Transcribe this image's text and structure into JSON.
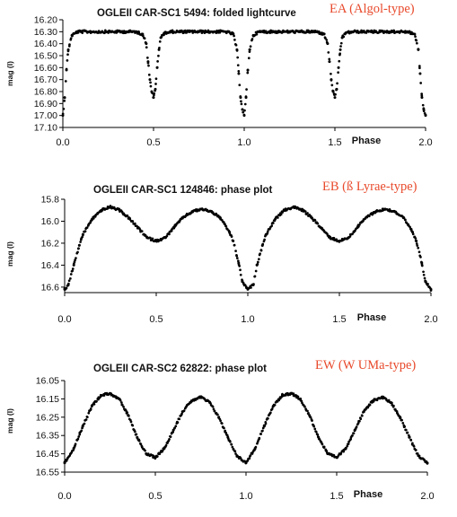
{
  "chart_data": [
    {
      "type": "scatter",
      "title": "OGLEII CAR-SC1 5494: folded lightcurve",
      "annotation": "EA (Algol-type)",
      "xlabel": "Phase",
      "ylabel": "mag (I)",
      "xlim": [
        0.0,
        2.0
      ],
      "ylim": [
        16.2,
        17.1
      ],
      "y_inverted": true,
      "grid": false,
      "x_ticks": [
        0.0,
        0.5,
        1.0,
        1.5,
        2.0
      ],
      "x_tick_labels": [
        "0.0",
        "0.5",
        "1.0",
        "1.5",
        "2.0"
      ],
      "y_ticks": [
        16.2,
        16.3,
        16.4,
        16.5,
        16.6,
        16.7,
        16.8,
        16.9,
        17.0,
        17.1
      ],
      "y_tick_labels": [
        "16.20",
        "16.30",
        "16.40",
        "16.50",
        "16.60",
        "16.70",
        "16.80",
        "16.90",
        "17.00",
        "17.10"
      ],
      "series": [
        {
          "x": [
            0.0,
            0.01,
            0.02,
            0.03,
            0.05,
            0.08,
            0.1,
            0.15,
            0.2,
            0.25,
            0.3,
            0.35,
            0.4,
            0.44,
            0.46,
            0.47,
            0.48,
            0.49,
            0.5,
            0.51,
            0.52,
            0.53,
            0.54,
            0.56,
            0.6,
            0.65,
            0.7,
            0.75,
            0.8,
            0.85,
            0.9,
            0.94,
            0.96,
            0.97,
            0.98,
            0.99,
            1.0,
            1.01,
            1.02,
            1.03,
            1.05,
            1.08,
            1.1,
            1.15,
            1.2,
            1.25,
            1.3,
            1.35,
            1.4,
            1.44,
            1.46,
            1.47,
            1.48,
            1.49,
            1.5,
            1.51,
            1.52,
            1.53,
            1.54,
            1.56,
            1.6,
            1.65,
            1.7,
            1.75,
            1.8,
            1.85,
            1.9,
            1.94,
            1.96,
            1.97,
            1.98,
            1.99,
            2.0
          ],
          "y": [
            17.0,
            16.85,
            16.62,
            16.45,
            16.33,
            16.3,
            16.3,
            16.3,
            16.3,
            16.3,
            16.3,
            16.3,
            16.3,
            16.32,
            16.4,
            16.55,
            16.7,
            16.8,
            16.85,
            16.78,
            16.6,
            16.45,
            16.35,
            16.31,
            16.3,
            16.3,
            16.3,
            16.3,
            16.3,
            16.3,
            16.3,
            16.32,
            16.45,
            16.65,
            16.85,
            16.95,
            17.0,
            16.85,
            16.62,
            16.45,
            16.33,
            16.3,
            16.3,
            16.3,
            16.3,
            16.3,
            16.3,
            16.3,
            16.3,
            16.32,
            16.4,
            16.55,
            16.7,
            16.8,
            16.85,
            16.78,
            16.6,
            16.45,
            16.35,
            16.31,
            16.3,
            16.3,
            16.3,
            16.3,
            16.3,
            16.3,
            16.3,
            16.32,
            16.45,
            16.65,
            16.85,
            16.95,
            17.0
          ]
        }
      ]
    },
    {
      "type": "scatter",
      "title": "OGLEII CAR-SC1 124846: phase plot",
      "annotation": "EB (ß Lyrae-type)",
      "xlabel": "Phase",
      "ylabel": "mag (I)",
      "xlim": [
        0.0,
        2.0
      ],
      "ylim": [
        15.8,
        16.65
      ],
      "y_inverted": true,
      "grid": false,
      "x_ticks": [
        0.0,
        0.5,
        1.0,
        1.5,
        2.0
      ],
      "x_tick_labels": [
        "0.0",
        "0.5",
        "1.0",
        "1.5",
        "2.0"
      ],
      "y_ticks": [
        15.8,
        16.0,
        16.2,
        16.4,
        16.6
      ],
      "y_tick_labels": [
        "15.8",
        "16.0",
        "16.2",
        "16.4",
        "16.6"
      ],
      "series": [
        {
          "x": [
            0.0,
            0.02,
            0.05,
            0.08,
            0.1,
            0.15,
            0.2,
            0.25,
            0.3,
            0.35,
            0.4,
            0.45,
            0.5,
            0.55,
            0.6,
            0.65,
            0.7,
            0.75,
            0.8,
            0.85,
            0.9,
            0.92,
            0.95,
            0.97,
            1.0,
            1.03,
            1.05,
            1.08,
            1.1,
            1.15,
            1.2,
            1.25,
            1.3,
            1.35,
            1.4,
            1.45,
            1.5,
            1.55,
            1.6,
            1.65,
            1.7,
            1.75,
            1.8,
            1.85,
            1.9,
            1.92,
            1.95,
            1.97,
            2.0
          ],
          "y": [
            16.62,
            16.58,
            16.4,
            16.22,
            16.12,
            15.98,
            15.9,
            15.87,
            15.9,
            15.97,
            16.06,
            16.15,
            16.18,
            16.15,
            16.05,
            15.96,
            15.91,
            15.89,
            15.91,
            15.97,
            16.1,
            16.18,
            16.38,
            16.55,
            16.62,
            16.58,
            16.4,
            16.22,
            16.12,
            15.98,
            15.9,
            15.87,
            15.9,
            15.97,
            16.06,
            16.15,
            16.18,
            16.15,
            16.05,
            15.96,
            15.91,
            15.89,
            15.91,
            15.97,
            16.1,
            16.18,
            16.38,
            16.55,
            16.62
          ]
        }
      ]
    },
    {
      "type": "scatter",
      "title": "OGLEII CAR-SC2 62822: phase plot",
      "annotation": "EW (W UMa-type)",
      "xlabel": "Phase",
      "ylabel": "mag (I)",
      "xlim": [
        0.0,
        2.0
      ],
      "ylim": [
        16.05,
        16.55
      ],
      "y_inverted": true,
      "grid": false,
      "x_ticks": [
        0.0,
        0.5,
        1.0,
        1.5,
        2.0
      ],
      "x_tick_labels": [
        "0.0",
        "0.5",
        "1.0",
        "1.5",
        "2.0"
      ],
      "y_ticks": [
        16.05,
        16.15,
        16.25,
        16.35,
        16.45,
        16.55
      ],
      "y_tick_labels": [
        "16.05",
        "16.15",
        "16.25",
        "16.35",
        "16.45",
        "16.55"
      ],
      "series": [
        {
          "x": [
            0.0,
            0.05,
            0.1,
            0.15,
            0.2,
            0.25,
            0.3,
            0.35,
            0.4,
            0.45,
            0.5,
            0.55,
            0.6,
            0.65,
            0.7,
            0.75,
            0.8,
            0.85,
            0.9,
            0.95,
            1.0,
            1.05,
            1.1,
            1.15,
            1.2,
            1.25,
            1.3,
            1.35,
            1.4,
            1.45,
            1.5,
            1.55,
            1.6,
            1.65,
            1.7,
            1.75,
            1.8,
            1.85,
            1.9,
            1.95,
            2.0
          ],
          "y": [
            16.5,
            16.42,
            16.3,
            16.19,
            16.13,
            16.12,
            16.15,
            16.24,
            16.36,
            16.45,
            16.47,
            16.42,
            16.32,
            16.22,
            16.16,
            16.14,
            16.17,
            16.25,
            16.36,
            16.46,
            16.5,
            16.42,
            16.3,
            16.19,
            16.13,
            16.12,
            16.15,
            16.24,
            16.36,
            16.45,
            16.47,
            16.42,
            16.32,
            16.22,
            16.16,
            16.14,
            16.17,
            16.25,
            16.36,
            16.46,
            16.5
          ]
        }
      ]
    }
  ]
}
